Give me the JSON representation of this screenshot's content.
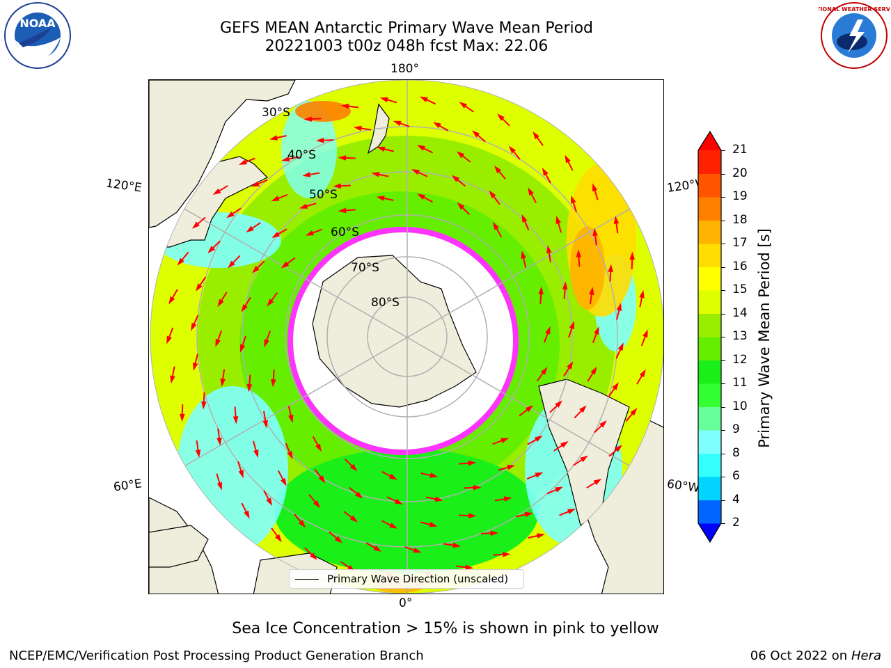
{
  "title_line1": "GEFS MEAN Antarctic Primary Wave Mean Period",
  "title_line2": "20221003 t00z 048h fcst   Max: 22.06",
  "logos": {
    "left": {
      "name": "noaa-logo",
      "text": "NOAA"
    },
    "right": {
      "name": "nws-logo",
      "text": "NATIONAL WEATHER SERVICE"
    }
  },
  "map": {
    "projection": "south-polar-stereographic",
    "longitude_labels": {
      "top": "180°",
      "bottom": "0°",
      "left_upper": "120°E",
      "left_lower": "60°E",
      "right_upper": "120°W",
      "right_lower": "60°W"
    },
    "latitude_labels": [
      "30°S",
      "40°S",
      "50°S",
      "60°S",
      "70°S",
      "80°S"
    ],
    "colors": {
      "land": "#efeedd",
      "ice_edge": "#ff33ff",
      "arrow": "#ff0000",
      "grid": "#b0b0b0"
    }
  },
  "legend": {
    "label": "Primary Wave Direction (unscaled)"
  },
  "colorbar": {
    "label": "Primary Wave Mean Period [s]",
    "ticks": [
      "21",
      "20",
      "19",
      "18",
      "17",
      "16",
      "15",
      "14",
      "13",
      "12",
      "11",
      "10",
      "9",
      "8",
      "6",
      "4",
      "2"
    ],
    "colors": [
      "#0000ff",
      "#0066ff",
      "#00d4ff",
      "#33ffff",
      "#80ffff",
      "#66ff99",
      "#33ff33",
      "#1aef1a",
      "#66ee00",
      "#99ee00",
      "#ddff00",
      "#ffff00",
      "#ffdd00",
      "#ffb300",
      "#ff8000",
      "#ff5500",
      "#ff2200",
      "#ff0000"
    ]
  },
  "ice_note": "Sea Ice Concentration > 15% is shown in pink to yellow",
  "footer": {
    "left": "NCEP/EMC/Verification Post Processing Product Generation Branch",
    "right_date": "06 Oct 2022 on ",
    "right_host": "Hera"
  }
}
